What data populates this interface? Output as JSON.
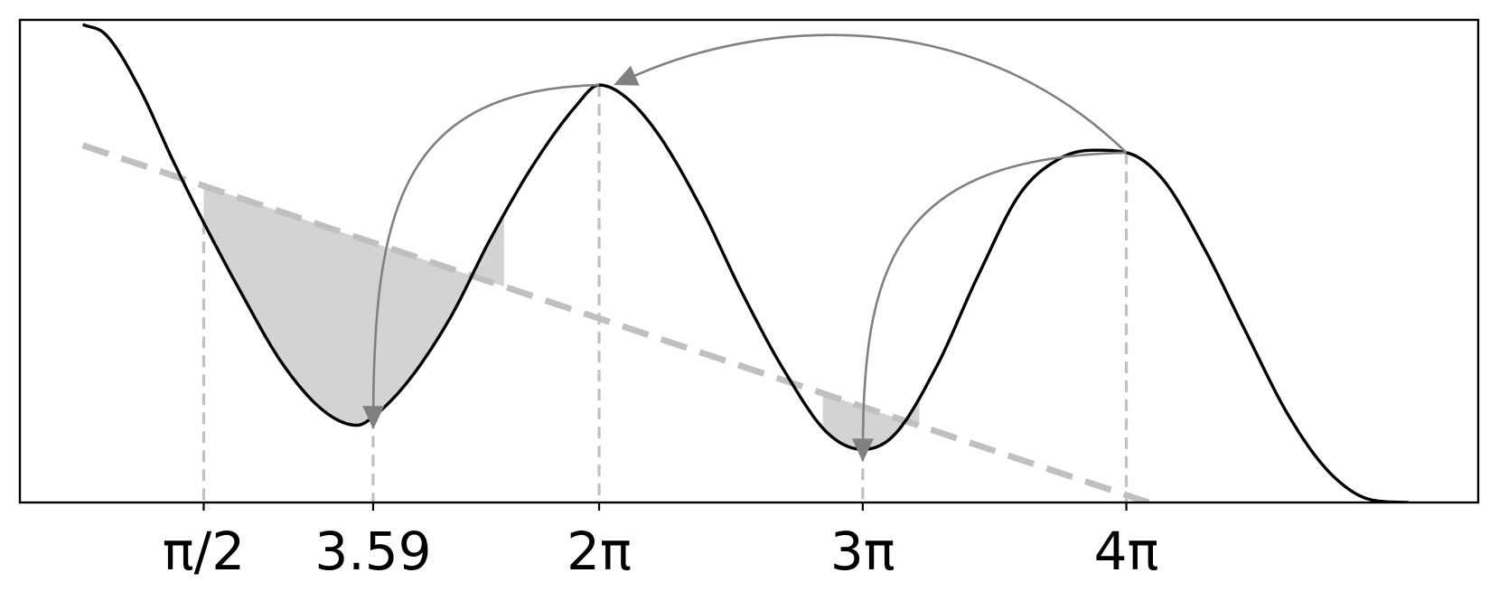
{
  "chart_data": {
    "type": "line",
    "title": "",
    "xlabel": "",
    "ylabel": "",
    "grid": false,
    "legend": "none",
    "xlim": [
      -0.62,
      16.76
    ],
    "ylim": [
      -1.0,
      1.0
    ],
    "curve": {
      "name": "",
      "x_range": [
        -0.62,
        16.76
      ],
      "samples": [
        {
          "x": 0.13,
          "y": 0.981
        },
        {
          "x": 0.4,
          "y": 0.94
        },
        {
          "x": 0.8,
          "y": 0.72
        },
        {
          "x": 1.2,
          "y": 0.42
        },
        {
          "x": 1.5708,
          "y": 0.16
        },
        {
          "x": 2.0,
          "y": -0.12
        },
        {
          "x": 2.5,
          "y": -0.42
        },
        {
          "x": 3.0,
          "y": -0.62
        },
        {
          "x": 3.4,
          "y": -0.68
        },
        {
          "x": 3.59,
          "y": -0.645
        },
        {
          "x": 4.0,
          "y": -0.5
        },
        {
          "x": 4.5,
          "y": -0.24
        },
        {
          "x": 5.0,
          "y": 0.1
        },
        {
          "x": 5.5,
          "y": 0.4
        },
        {
          "x": 6.0,
          "y": 0.64
        },
        {
          "x": 6.2832,
          "y": 0.73
        },
        {
          "x": 6.6,
          "y": 0.68
        },
        {
          "x": 7.0,
          "y": 0.52
        },
        {
          "x": 7.5,
          "y": 0.22
        },
        {
          "x": 8.0,
          "y": -0.14
        },
        {
          "x": 8.5,
          "y": -0.46
        },
        {
          "x": 9.0,
          "y": -0.71
        },
        {
          "x": 9.4248,
          "y": -0.78
        },
        {
          "x": 9.8,
          "y": -0.72
        },
        {
          "x": 10.3,
          "y": -0.44
        },
        {
          "x": 10.8,
          "y": -0.06
        },
        {
          "x": 11.3,
          "y": 0.28
        },
        {
          "x": 11.8,
          "y": 0.43
        },
        {
          "x": 12.2,
          "y": 0.46
        },
        {
          "x": 12.5664,
          "y": 0.45
        },
        {
          "x": 13.0,
          "y": 0.34
        },
        {
          "x": 13.5,
          "y": 0.05
        },
        {
          "x": 14.0,
          "y": -0.3
        },
        {
          "x": 14.5,
          "y": -0.64
        },
        {
          "x": 15.0,
          "y": -0.88
        },
        {
          "x": 15.5,
          "y": -0.99
        },
        {
          "x": 15.93,
          "y": -1.0
        }
      ]
    },
    "trend_line": {
      "style": "dashed",
      "color": "#c0c0c0",
      "x": [
        0.13,
        12.83
      ],
      "y": [
        0.48,
        -1.0
      ]
    },
    "shaded_regions": [
      {
        "x_from": 1.5708,
        "x_to": 5.15,
        "color": "#d3d3d3"
      },
      {
        "x_from": 8.95,
        "x_to": 10.1,
        "color": "#d3d3d3"
      }
    ],
    "vertical_markers": [
      1.5708,
      3.59,
      6.2832,
      9.4248,
      12.5664
    ],
    "x_ticks": [
      {
        "value": 1.5708,
        "label": "π/2"
      },
      {
        "value": 3.59,
        "label": "3.59"
      },
      {
        "value": 6.2832,
        "label": "2π"
      },
      {
        "value": 9.4248,
        "label": "3π"
      },
      {
        "value": 12.5664,
        "label": "4π"
      }
    ],
    "arrows": [
      {
        "from_x": 12.5664,
        "to_x": 6.2832,
        "bend": "above"
      },
      {
        "from_x": 6.2832,
        "to_x": 3.59,
        "bend": "left"
      },
      {
        "from_x": 12.5664,
        "to_x": 9.4248,
        "bend": "left"
      }
    ],
    "colors": {
      "curve": "#000000",
      "arrows": "#808080",
      "markers": "#c0c0c0",
      "fill": "#d3d3d3"
    }
  }
}
